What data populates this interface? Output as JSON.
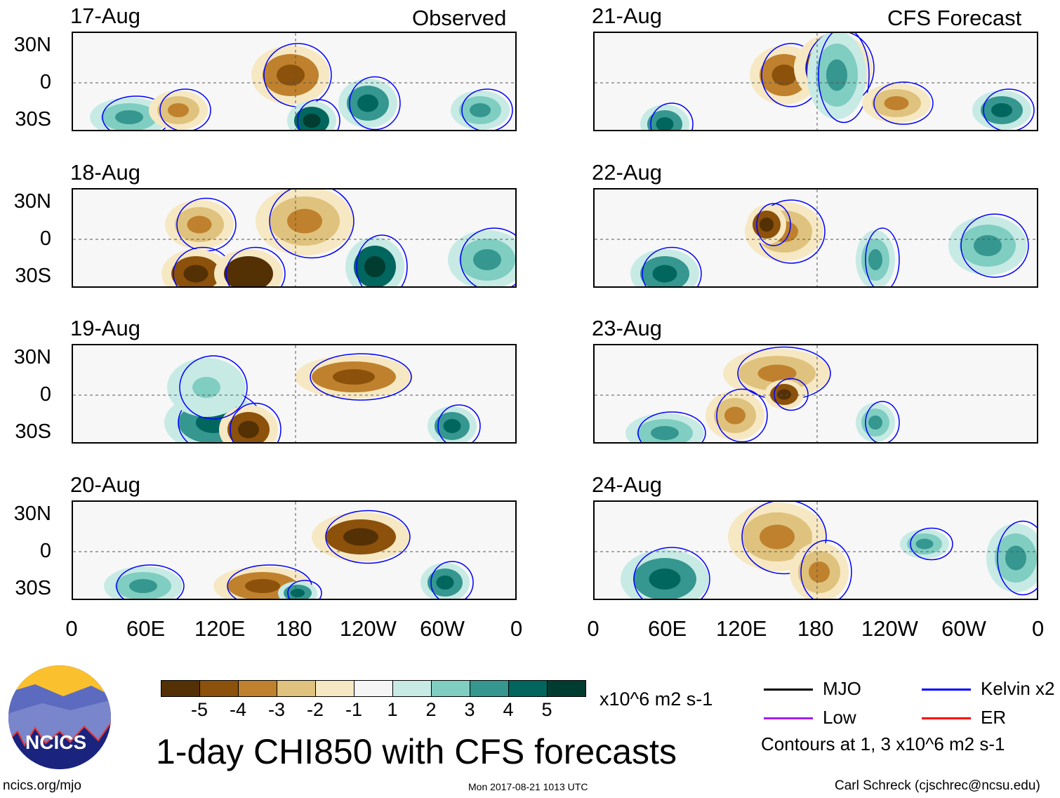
{
  "panels_left": {
    "header": "Observed",
    "dates": [
      "17-Aug",
      "18-Aug",
      "19-Aug",
      "20-Aug"
    ]
  },
  "panels_right": {
    "header": "CFS Forecast",
    "dates": [
      "21-Aug",
      "22-Aug",
      "23-Aug",
      "24-Aug"
    ]
  },
  "lat_labels": [
    "30N",
    "0",
    "30S"
  ],
  "lon_labels": [
    "0",
    "60E",
    "120E",
    "180",
    "120W",
    "60W",
    "0"
  ],
  "colorbar": {
    "colors": [
      "#543005",
      "#8c510a",
      "#bf812d",
      "#dfc27d",
      "#f6e8c3",
      "#f5f5f5",
      "#c7eae5",
      "#80cdc1",
      "#35978f",
      "#01665e",
      "#003c30"
    ],
    "ticks": [
      "-5",
      "-4",
      "-3",
      "-2",
      "-1",
      "1",
      "2",
      "3",
      "4",
      "5"
    ],
    "units": "x10^6 m2 s-1"
  },
  "legend": {
    "items": [
      {
        "label": "MJO",
        "color": "#000000"
      },
      {
        "label": "Kelvin x2",
        "color": "#0000ff"
      },
      {
        "label": "Low",
        "color": "#a020f0"
      },
      {
        "label": "ER",
        "color": "#ff0000"
      }
    ],
    "note": "Contours at 1, 3 x10^6 m2 s-1"
  },
  "title": "1-day CHI850 with CFS forecasts",
  "logo_text": "NCICS",
  "footer": {
    "left": "ncics.org/mjo",
    "center": "Mon 2017-08-21 1013 UTC",
    "right": "Carl Schreck (cjschrec@ncsu.edu)"
  }
}
